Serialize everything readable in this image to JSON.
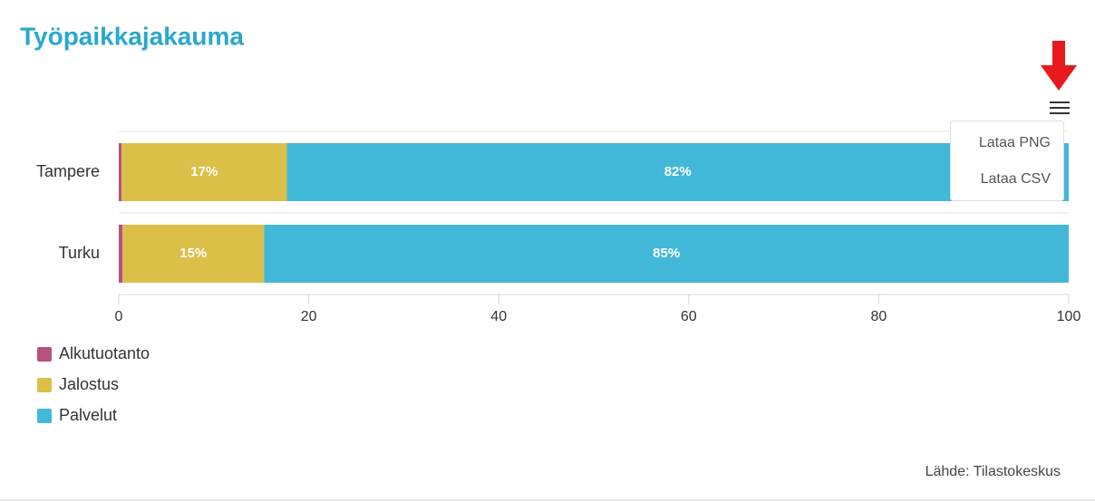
{
  "chart_data": {
    "type": "bar",
    "orientation": "horizontal",
    "stacked": true,
    "title": "Työpaikkajakauma",
    "categories": [
      "Tampere",
      "Turku"
    ],
    "series": [
      {
        "name": "Alkutuotanto",
        "color": "#b5527f",
        "values": [
          0.3,
          0.4
        ]
      },
      {
        "name": "Jalostus",
        "color": "#dcbf48",
        "values": [
          17.4,
          14.9
        ],
        "value_labels": [
          "17%",
          "15%"
        ]
      },
      {
        "name": "Palvelut",
        "color": "#41b8d8",
        "values": [
          82.3,
          84.7
        ],
        "value_labels": [
          "82%",
          "85%"
        ]
      }
    ],
    "xlim": [
      0,
      100
    ],
    "xticks": [
      0,
      20,
      40,
      60,
      80,
      100
    ],
    "legend": "bottom-left",
    "source": "Lähde: Tilastokeskus"
  },
  "menu": {
    "items": [
      "Lataa PNG",
      "Lataa CSV"
    ]
  }
}
